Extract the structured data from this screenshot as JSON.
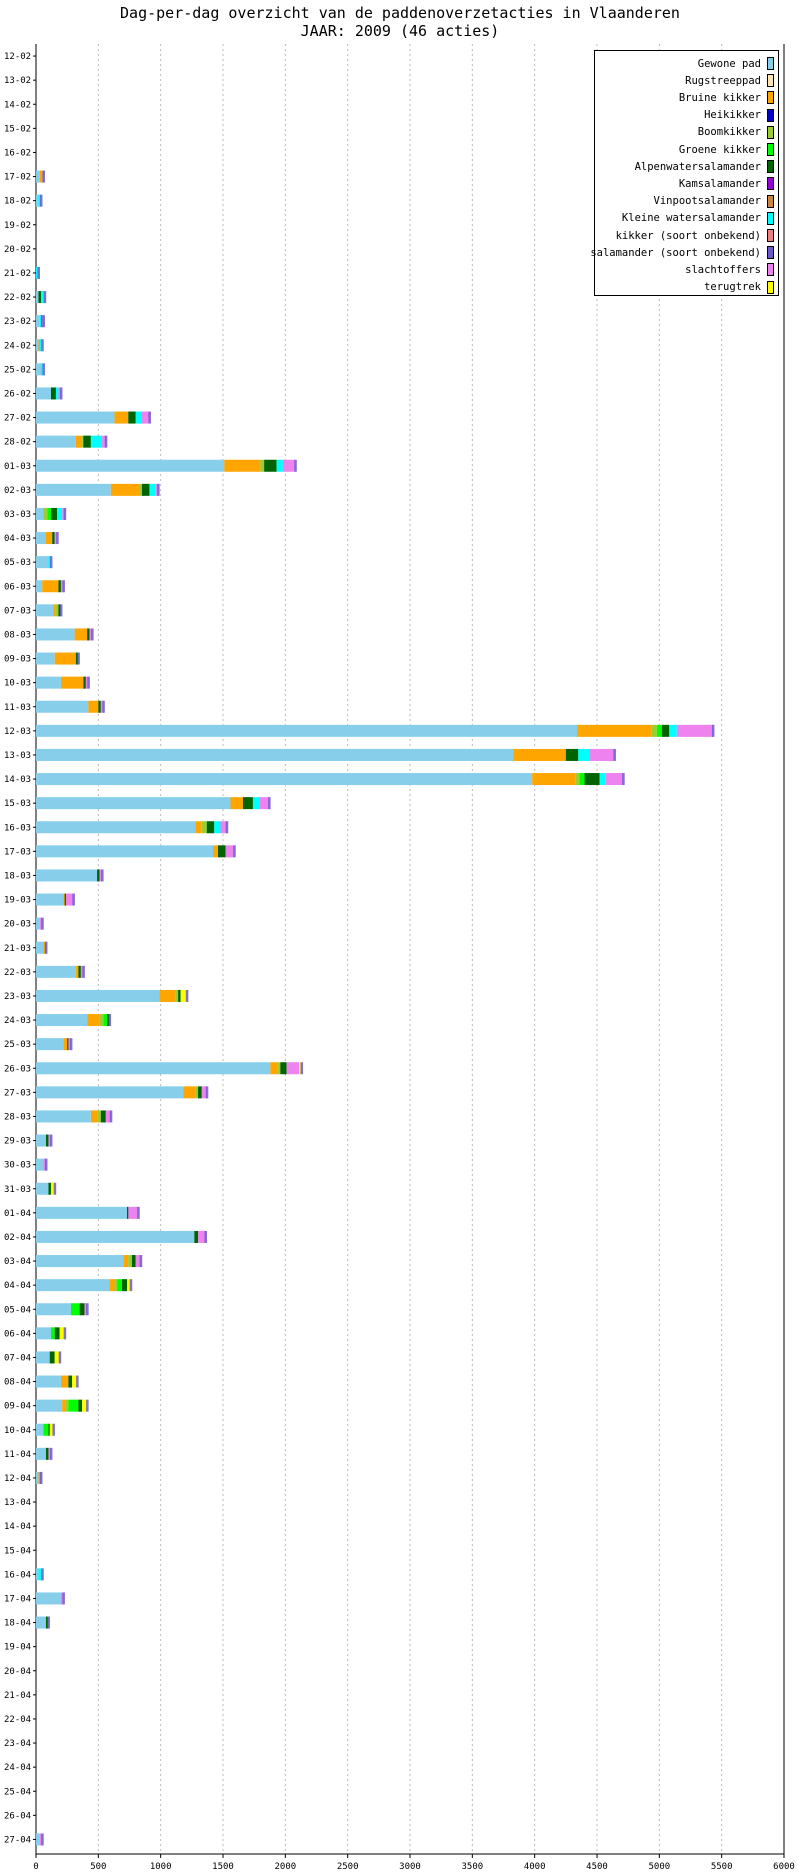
{
  "chart_data": {
    "type": "bar",
    "orientation": "horizontal",
    "stacked": true,
    "title": "Dag-per-dag overzicht van de paddenoverzetacties in Vlaanderen",
    "subtitle": "JAAR: 2009 (46 acties)",
    "xlim": [
      0,
      6000
    ],
    "xticks": [
      "0",
      "500",
      "1000",
      "1500",
      "2000",
      "2500",
      "3000",
      "3500",
      "4000",
      "4500",
      "5000",
      "5500",
      "6000"
    ],
    "grid": "vertical dotted",
    "legend_position": "top-right",
    "categories": [
      "12-02",
      "13-02",
      "14-02",
      "15-02",
      "16-02",
      "17-02",
      "18-02",
      "19-02",
      "20-02",
      "21-02",
      "22-02",
      "23-02",
      "24-02",
      "25-02",
      "26-02",
      "27-02",
      "28-02",
      "01-03",
      "02-03",
      "03-03",
      "04-03",
      "05-03",
      "06-03",
      "07-03",
      "08-03",
      "09-03",
      "10-03",
      "11-03",
      "12-03",
      "13-03",
      "14-03",
      "15-03",
      "16-03",
      "17-03",
      "18-03",
      "19-03",
      "20-03",
      "21-03",
      "22-03",
      "23-03",
      "24-03",
      "25-03",
      "26-03",
      "27-03",
      "28-03",
      "29-03",
      "30-03",
      "31-03",
      "01-04",
      "02-04",
      "03-04",
      "04-04",
      "05-04",
      "06-04",
      "07-04",
      "08-04",
      "09-04",
      "10-04",
      "11-04",
      "12-04",
      "13-04",
      "14-04",
      "15-04",
      "16-04",
      "17-04",
      "18-04",
      "19-04",
      "20-04",
      "21-04",
      "22-04",
      "23-04",
      "24-04",
      "25-04",
      "26-04",
      "27-04"
    ],
    "series": [
      {
        "name": "Gewone pad",
        "color": "#87ceeb",
        "values": [
          0,
          0,
          0,
          0,
          0,
          30,
          20,
          0,
          0,
          0,
          20,
          30,
          20,
          40,
          120,
          630,
          320,
          1510,
          600,
          60,
          80,
          100,
          50,
          140,
          310,
          150,
          200,
          420,
          4340,
          3830,
          3980,
          1560,
          1280,
          1420,
          490,
          220,
          30,
          60,
          320,
          990,
          410,
          220,
          1880,
          1180,
          440,
          80,
          60,
          100,
          730,
          1270,
          700,
          590,
          280,
          120,
          110,
          200,
          210,
          60,
          80,
          20,
          0,
          0,
          0,
          20,
          200,
          80,
          0,
          0,
          0,
          0,
          0,
          0,
          0,
          0,
          30
        ]
      },
      {
        "name": "Rugstreeppad",
        "color": "#ffe4b5",
        "values": [
          0,
          0,
          0,
          0,
          0,
          0,
          0,
          0,
          0,
          0,
          0,
          0,
          0,
          0,
          0,
          0,
          0,
          0,
          0,
          0,
          0,
          0,
          0,
          0,
          0,
          0,
          0,
          0,
          0,
          0,
          0,
          0,
          0,
          0,
          0,
          0,
          0,
          0,
          0,
          0,
          0,
          0,
          0,
          0,
          0,
          0,
          0,
          0,
          0,
          0,
          0,
          0,
          0,
          0,
          0,
          0,
          0,
          0,
          0,
          0,
          0,
          0,
          0,
          0,
          0,
          0,
          0,
          0,
          0,
          0,
          0,
          0,
          0,
          0,
          0
        ]
      },
      {
        "name": "Bruine kikker",
        "color": "#ffa500",
        "values": [
          0,
          0,
          0,
          0,
          0,
          20,
          0,
          0,
          0,
          0,
          0,
          0,
          10,
          0,
          0,
          110,
          50,
          290,
          230,
          0,
          50,
          0,
          130,
          20,
          100,
          170,
          180,
          80,
          600,
          420,
          350,
          100,
          50,
          40,
          0,
          10,
          0,
          10,
          20,
          130,
          100,
          30,
          60,
          100,
          50,
          0,
          0,
          0,
          0,
          0,
          40,
          40,
          0,
          0,
          0,
          60,
          30,
          0,
          0,
          10,
          0,
          0,
          0,
          0,
          0,
          0,
          0,
          0,
          0,
          0,
          0,
          0,
          0,
          0,
          0
        ]
      },
      {
        "name": "Heikikker",
        "color": "#0000cd",
        "values": [
          0,
          0,
          0,
          0,
          0,
          0,
          0,
          0,
          0,
          0,
          0,
          0,
          0,
          0,
          0,
          0,
          0,
          0,
          0,
          0,
          0,
          0,
          0,
          0,
          0,
          0,
          0,
          0,
          0,
          0,
          0,
          0,
          0,
          0,
          0,
          0,
          0,
          0,
          0,
          0,
          0,
          0,
          0,
          0,
          0,
          0,
          0,
          0,
          0,
          0,
          0,
          0,
          0,
          0,
          0,
          0,
          0,
          0,
          0,
          0,
          0,
          0,
          0,
          0,
          0,
          0,
          0,
          0,
          0,
          0,
          0,
          0,
          0,
          0,
          0
        ]
      },
      {
        "name": "Boomkikker",
        "color": "#9acd32",
        "values": [
          0,
          0,
          0,
          0,
          0,
          0,
          0,
          0,
          0,
          0,
          0,
          0,
          0,
          0,
          0,
          0,
          10,
          30,
          20,
          30,
          0,
          0,
          0,
          20,
          0,
          0,
          0,
          0,
          40,
          0,
          30,
          0,
          40,
          0,
          0,
          0,
          0,
          0,
          0,
          20,
          30,
          0,
          20,
          20,
          30,
          0,
          0,
          0,
          0,
          0,
          30,
          20,
          0,
          0,
          0,
          0,
          20,
          0,
          0,
          0,
          0,
          0,
          0,
          0,
          0,
          0,
          0,
          0,
          0,
          0,
          0,
          0,
          0,
          0,
          0
        ]
      },
      {
        "name": "Groene kikker",
        "color": "#00ff00",
        "values": [
          0,
          0,
          0,
          0,
          0,
          0,
          0,
          0,
          0,
          0,
          0,
          0,
          0,
          0,
          0,
          0,
          0,
          0,
          0,
          30,
          0,
          0,
          0,
          0,
          0,
          0,
          0,
          0,
          40,
          0,
          40,
          0,
          0,
          0,
          0,
          0,
          0,
          0,
          0,
          0,
          30,
          0,
          0,
          0,
          0,
          0,
          0,
          0,
          0,
          0,
          0,
          40,
          70,
          30,
          0,
          0,
          80,
          40,
          0,
          0,
          0,
          0,
          0,
          0,
          0,
          0,
          0,
          0,
          0,
          0,
          0,
          0,
          0,
          0,
          0
        ]
      },
      {
        "name": "Alpenwatersalamander",
        "color": "#006400",
        "values": [
          0,
          0,
          0,
          0,
          0,
          0,
          0,
          0,
          0,
          0,
          20,
          0,
          0,
          0,
          40,
          60,
          60,
          100,
          60,
          50,
          20,
          0,
          20,
          20,
          20,
          20,
          20,
          20,
          60,
          100,
          120,
          80,
          60,
          60,
          20,
          10,
          0,
          0,
          20,
          20,
          20,
          10,
          50,
          30,
          40,
          20,
          0,
          20,
          10,
          30,
          30,
          40,
          40,
          40,
          40,
          30,
          30,
          10,
          20,
          0,
          0,
          0,
          0,
          0,
          0,
          20,
          0,
          0,
          0,
          0,
          0,
          0,
          0,
          0,
          0
        ]
      },
      {
        "name": "Kamsalamander",
        "color": "#9400d3",
        "values": [
          0,
          0,
          0,
          0,
          0,
          0,
          0,
          0,
          0,
          0,
          0,
          0,
          0,
          0,
          0,
          0,
          0,
          0,
          0,
          0,
          0,
          0,
          0,
          0,
          0,
          0,
          0,
          0,
          0,
          0,
          0,
          0,
          0,
          0,
          0,
          0,
          0,
          0,
          0,
          0,
          0,
          0,
          0,
          0,
          0,
          0,
          0,
          0,
          0,
          0,
          0,
          0,
          0,
          0,
          0,
          0,
          0,
          0,
          0,
          0,
          0,
          0,
          0,
          0,
          0,
          0,
          0,
          0,
          0,
          0,
          0,
          0,
          0,
          0,
          0
        ]
      },
      {
        "name": "Vinpootsalamander",
        "color": "#cd853f",
        "values": [
          0,
          0,
          0,
          0,
          0,
          10,
          0,
          0,
          0,
          0,
          0,
          0,
          0,
          0,
          0,
          0,
          0,
          0,
          0,
          0,
          0,
          0,
          0,
          0,
          0,
          0,
          0,
          0,
          0,
          0,
          0,
          0,
          0,
          0,
          0,
          0,
          0,
          10,
          0,
          0,
          0,
          0,
          0,
          0,
          0,
          0,
          0,
          0,
          0,
          0,
          0,
          0,
          0,
          0,
          0,
          0,
          0,
          0,
          0,
          10,
          0,
          0,
          0,
          0,
          0,
          0,
          0,
          0,
          0,
          0,
          0,
          0,
          0,
          0,
          0
        ]
      },
      {
        "name": "Kleine watersalamander",
        "color": "#00ffff",
        "values": [
          0,
          0,
          0,
          0,
          0,
          0,
          20,
          0,
          0,
          20,
          30,
          10,
          20,
          20,
          20,
          50,
          90,
          50,
          50,
          40,
          0,
          20,
          0,
          0,
          0,
          0,
          0,
          0,
          60,
          90,
          50,
          50,
          50,
          0,
          0,
          0,
          0,
          0,
          0,
          0,
          0,
          0,
          0,
          0,
          0,
          0,
          0,
          0,
          0,
          0,
          0,
          0,
          0,
          0,
          0,
          0,
          0,
          0,
          0,
          0,
          0,
          0,
          0,
          30,
          0,
          0,
          0,
          0,
          0,
          0,
          0,
          0,
          0,
          0,
          0
        ]
      },
      {
        "name": "kikker (soort onbekend)",
        "color": "#f08080",
        "values": [
          0,
          0,
          0,
          0,
          0,
          0,
          0,
          0,
          0,
          0,
          0,
          0,
          0,
          0,
          0,
          0,
          0,
          0,
          0,
          0,
          0,
          0,
          0,
          0,
          0,
          0,
          0,
          0,
          0,
          0,
          0,
          0,
          0,
          0,
          0,
          0,
          0,
          0,
          0,
          0,
          0,
          0,
          0,
          0,
          0,
          0,
          0,
          0,
          0,
          0,
          0,
          0,
          0,
          0,
          0,
          0,
          0,
          0,
          0,
          0,
          0,
          0,
          0,
          0,
          0,
          0,
          0,
          0,
          0,
          0,
          0,
          0,
          0,
          0,
          0
        ]
      },
      {
        "name": "salamander (soort onbekend)",
        "color": "#6a5acd",
        "values": [
          0,
          0,
          0,
          0,
          0,
          0,
          0,
          0,
          0,
          0,
          0,
          10,
          0,
          0,
          0,
          0,
          0,
          0,
          0,
          0,
          0,
          0,
          0,
          0,
          0,
          0,
          0,
          0,
          0,
          0,
          0,
          0,
          0,
          0,
          0,
          0,
          0,
          0,
          0,
          0,
          0,
          0,
          0,
          0,
          0,
          0,
          0,
          0,
          0,
          0,
          0,
          0,
          0,
          0,
          0,
          0,
          0,
          0,
          0,
          0,
          0,
          0,
          0,
          0,
          0,
          0,
          0,
          0,
          0,
          0,
          0,
          0,
          0,
          0,
          0
        ]
      },
      {
        "name": "slachtoffers",
        "color": "#ee82ee",
        "values": [
          0,
          0,
          0,
          0,
          0,
          0,
          0,
          0,
          0,
          0,
          0,
          10,
          0,
          0,
          20,
          60,
          30,
          100,
          20,
          20,
          20,
          0,
          20,
          0,
          20,
          0,
          20,
          20,
          290,
          200,
          140,
          80,
          50,
          70,
          20,
          60,
          20,
          0,
          20,
          0,
          0,
          20,
          100,
          40,
          40,
          20,
          20,
          0,
          80,
          60,
          40,
          0,
          20,
          0,
          0,
          0,
          0,
          0,
          20,
          0,
          0,
          0,
          0,
          0,
          20,
          0,
          0,
          0,
          0,
          0,
          0,
          0,
          0,
          0,
          20
        ]
      },
      {
        "name": "terugtrek",
        "color": "#ffff00",
        "values": [
          0,
          0,
          0,
          0,
          0,
          0,
          0,
          0,
          0,
          0,
          0,
          0,
          0,
          0,
          0,
          0,
          0,
          0,
          0,
          0,
          0,
          0,
          0,
          0,
          0,
          0,
          0,
          0,
          0,
          0,
          0,
          0,
          0,
          0,
          0,
          0,
          0,
          0,
          0,
          50,
          0,
          0,
          20,
          0,
          0,
          0,
          0,
          30,
          0,
          0,
          0,
          30,
          0,
          40,
          40,
          40,
          40,
          30,
          0,
          0,
          0,
          0,
          0,
          0,
          0,
          0,
          0,
          0,
          0,
          0,
          0,
          0,
          0,
          0,
          0
        ]
      }
    ]
  }
}
